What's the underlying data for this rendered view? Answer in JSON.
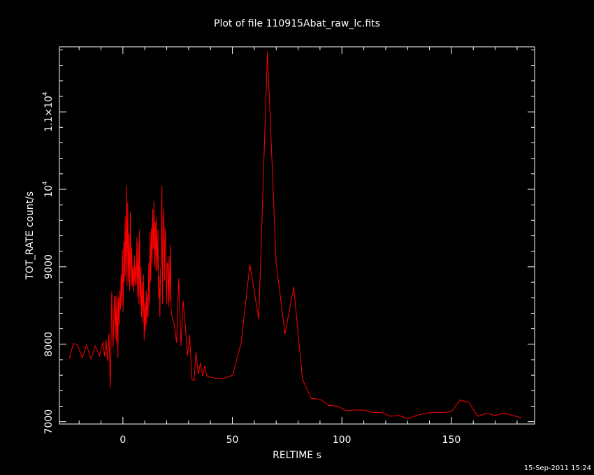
{
  "chart_data": {
    "type": "line",
    "title": "Plot of file 110915Abat_raw_lc.fits",
    "xlabel": "RELTIME  s",
    "ylabel": "TOT_RATE  count/s",
    "xlim": [
      -29,
      188
    ],
    "ylim": [
      6970,
      11840
    ],
    "grid": false,
    "series_color": "#ff0000",
    "axis_color": "#ffffff",
    "background": "#000000",
    "x_ticks": [
      {
        "value": 0,
        "label": "0"
      },
      {
        "value": 50,
        "label": "50"
      },
      {
        "value": 100,
        "label": "100"
      },
      {
        "value": 150,
        "label": "150"
      }
    ],
    "x_minor_step": 10,
    "y_ticks": [
      {
        "value": 7000,
        "label": "7000"
      },
      {
        "value": 8000,
        "label": "8000"
      },
      {
        "value": 9000,
        "label": "9000"
      },
      {
        "value": 10000,
        "label": "10",
        "sup": "4"
      },
      {
        "value": 11000,
        "label": "1.1×10",
        "sup": "4"
      }
    ],
    "y_minor_step": 200,
    "series": [
      {
        "x": [
          -24.5,
          -22.6,
          -20.6,
          -18.6,
          -16.6,
          -14.6,
          -12.6,
          -10.7,
          -9.1,
          -8.4,
          -7.7,
          -7.0,
          -6.4,
          -5.7,
          -5.1,
          -4.5,
          -3.9,
          -3.5,
          -3.2,
          -2.9,
          -2.6,
          -2.3,
          -2.0,
          -1.7,
          -1.4,
          -1.1,
          -0.8,
          -0.5,
          -0.2,
          0.1,
          0.4,
          0.7,
          1.0,
          1.3,
          1.6,
          1.9,
          2.2,
          2.5,
          2.8,
          3.1,
          3.4,
          3.7,
          4.0,
          4.3,
          4.6,
          4.9,
          5.2,
          5.5,
          5.8,
          6.1,
          6.4,
          6.7,
          7.0,
          7.3,
          7.6,
          7.9,
          8.2,
          8.5,
          8.8,
          9.1,
          9.4,
          9.7,
          10.0,
          10.3,
          10.6,
          10.9,
          11.2,
          11.5,
          11.8,
          12.1,
          12.4,
          12.7,
          13.0,
          13.3,
          13.6,
          13.9,
          14.2,
          14.5,
          14.8,
          15.1,
          15.4,
          15.7,
          16.0,
          16.3,
          16.6,
          16.9,
          17.2,
          17.5,
          17.8,
          18.1,
          18.4,
          18.7,
          19.0,
          19.3,
          19.6,
          19.9,
          20.2,
          20.5,
          20.8,
          21.1,
          21.4,
          21.7,
          22.0,
          22.5,
          23.5,
          24.5,
          25.5,
          26.5,
          27.5,
          28.5,
          29.5,
          30.5,
          31.5,
          32.5,
          33.4,
          34.4,
          35.4,
          36.4,
          37.3,
          38.3,
          42.2,
          46.1,
          50.1,
          54.0,
          58.0,
          62.0,
          66.0,
          70.0,
          74.0,
          78.0,
          82.0,
          86.0,
          90.0,
          94.0,
          98.0,
          102.0,
          106.0,
          110.0,
          114.0,
          118.0,
          122.0,
          126.0,
          130.0,
          134.0,
          138.0,
          142.0,
          146.0,
          150.0,
          154.0,
          158.0,
          162.0,
          166.0,
          170.0,
          174.0,
          178.0,
          182.0
        ],
        "y": [
          7810,
          8010,
          7990,
          7820,
          7990,
          7810,
          7980,
          7850,
          8030,
          7840,
          8060,
          7780,
          8140,
          7440,
          8680,
          7960,
          8630,
          8060,
          8620,
          8020,
          8640,
          7820,
          8600,
          8250,
          8700,
          8450,
          8900,
          8500,
          9220,
          8420,
          9330,
          8800,
          9650,
          8880,
          10050,
          8750,
          9830,
          8800,
          9430,
          8700,
          9700,
          8750,
          9250,
          8750,
          9000,
          8670,
          9150,
          8750,
          9020,
          8770,
          9380,
          8600,
          9320,
          8520,
          9480,
          8500,
          9000,
          8350,
          8800,
          8280,
          8900,
          8050,
          8530,
          8170,
          8700,
          8250,
          8650,
          8350,
          9050,
          8500,
          9450,
          8800,
          9500,
          9050,
          9750,
          9230,
          9850,
          9000,
          9580,
          8950,
          9650,
          8950,
          9480,
          8600,
          8880,
          8350,
          8990,
          9020,
          10050,
          8520,
          9450,
          9750,
          8820,
          9500,
          9290,
          8520,
          9050,
          9040,
          8480,
          9140,
          8560,
          9280,
          8460,
          8340,
          8250,
          8020,
          8850,
          7980,
          8560,
          8240,
          7850,
          8120,
          7550,
          7530,
          7900,
          7610,
          7760,
          7590,
          7720,
          7590,
          7560,
          7560,
          7600,
          8020,
          9030,
          8320,
          11780,
          9050,
          8130,
          8740,
          7550,
          7300,
          7290,
          7210,
          7200,
          7140,
          7150,
          7150,
          7120,
          7120,
          7070,
          7080,
          7040,
          7080,
          7110,
          7120,
          7120,
          7130,
          7280,
          7250,
          7070,
          7110,
          7080,
          7110,
          7080,
          7050
        ]
      }
    ]
  },
  "footer": {
    "timestamp": "15-Sep-2011 15:24"
  }
}
